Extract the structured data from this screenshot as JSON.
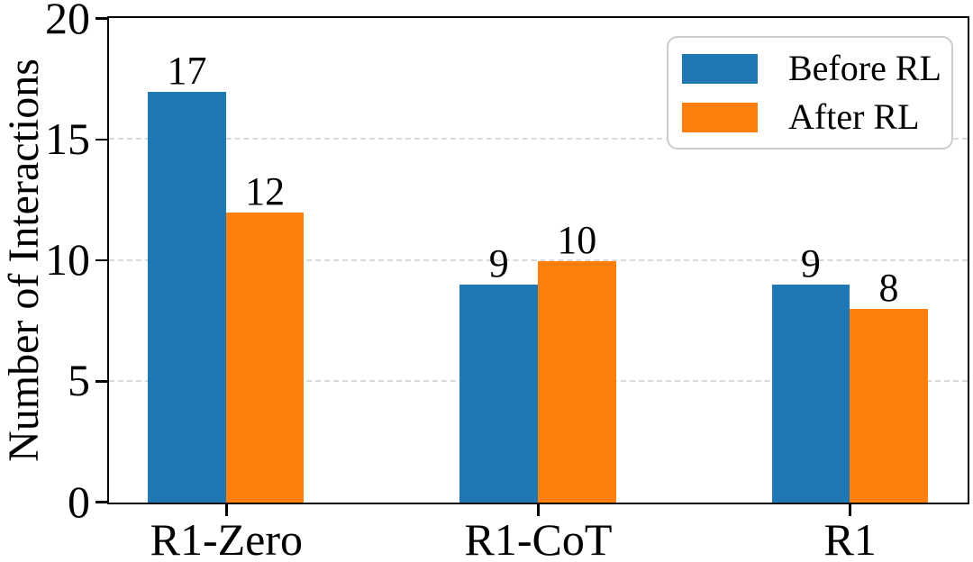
{
  "chart_data": {
    "type": "bar",
    "title": "",
    "xlabel": "",
    "ylabel": "Number of Interactions",
    "categories": [
      "R1-Zero",
      "R1-CoT",
      "R1"
    ],
    "series": [
      {
        "name": "Before RL",
        "color": "#1f77b4",
        "values": [
          17,
          9,
          9
        ]
      },
      {
        "name": "After RL",
        "color": "#ff7f0e",
        "values": [
          12,
          10,
          8
        ]
      }
    ],
    "ylim": [
      0,
      20
    ],
    "yticks": [
      0,
      5,
      10,
      15,
      20
    ],
    "grid": "horizontal dashed gridlines at interior y ticks",
    "grid_color": "#d9d9d9",
    "axis_color": "#000000",
    "legend_position": "upper right",
    "bar_value_labels": true
  }
}
